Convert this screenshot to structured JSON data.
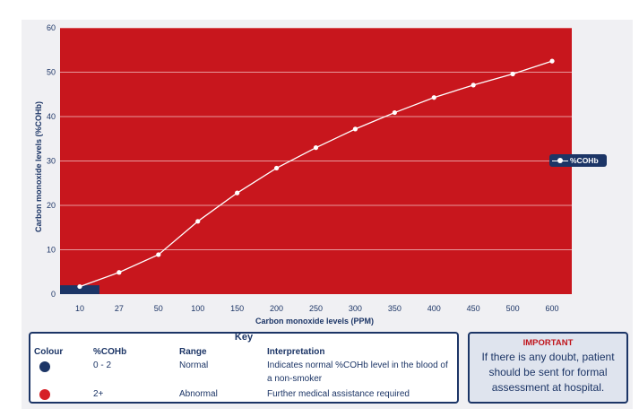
{
  "chart_data": {
    "type": "line",
    "categories": [
      "10",
      "27",
      "50",
      "100",
      "150",
      "200",
      "250",
      "300",
      "350",
      "400",
      "450",
      "500",
      "600"
    ],
    "series": [
      {
        "name": "%COHb",
        "values": [
          1.7,
          4.9,
          8.9,
          16.4,
          22.8,
          28.4,
          33.0,
          37.2,
          40.9,
          44.3,
          47.1,
          49.6,
          52.5
        ]
      }
    ],
    "ylim": [
      0,
      60
    ],
    "yticks": [
      0,
      10,
      20,
      30,
      40,
      50,
      60
    ],
    "xlabel": "Carbon monoxide levels (PPM)",
    "ylabel": "Carbon monoxide levels (%COHb)",
    "legend": "right",
    "normal_band_max": 2
  },
  "colors": {
    "abnormal": "#c8161d",
    "normal": "#1c3566",
    "line": "#ffffff"
  },
  "key": {
    "title": "Key",
    "headers": {
      "colour": "Colour",
      "cohb": "%COHb",
      "range": "Range",
      "interpretation": "Interpretation"
    },
    "rows": [
      {
        "cohb": "0 - 2",
        "range": "Normal",
        "interpretation": "Indicates normal %COHb level in the blood of a non-smoker",
        "color": "#1c3566"
      },
      {
        "cohb": "2+",
        "range": "Abnormal",
        "interpretation": "Further medical assistance required",
        "color": "#d61f26"
      }
    ]
  },
  "important": {
    "title": "IMPORTANT",
    "text": "If there is any doubt, patient should be sent for formal assessment at hospital."
  }
}
